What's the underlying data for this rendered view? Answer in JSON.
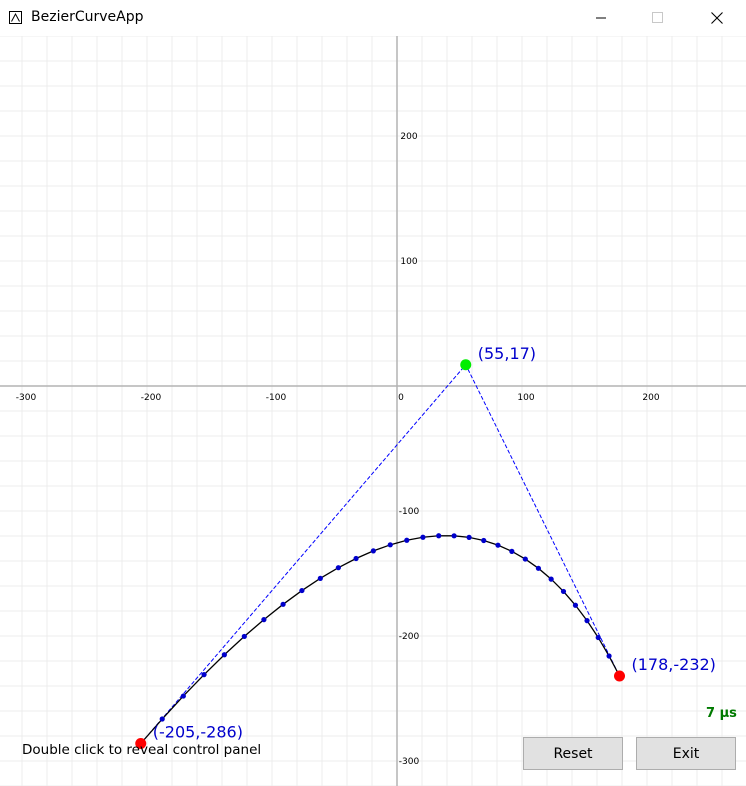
{
  "window": {
    "title": "BezierCurveApp",
    "icon": "bezier-app-icon",
    "controls": [
      "minimize-icon",
      "maximize-icon",
      "close-icon"
    ]
  },
  "canvas": {
    "x_tick_labels": [
      "-300",
      "-200",
      "-100",
      "0",
      "100",
      "200"
    ],
    "y_tick_labels": [
      "200",
      "100",
      "-100",
      "-200",
      "-300"
    ],
    "control_points": [
      {
        "x": -205,
        "y": -286,
        "label": "(-205,-286)",
        "color": "#ff0000"
      },
      {
        "x": 55,
        "y": 17,
        "label": "(55,17)",
        "color": "#00ee00"
      },
      {
        "x": 178,
        "y": -232,
        "label": "(178,-232)",
        "color": "#ff0000"
      }
    ],
    "curve_color": "#000000",
    "sample_point_color": "#0000cc",
    "control_polygon_color": "#0000ff",
    "curve_samples": 30
  },
  "hint_text": "Double click to reveal control panel",
  "timing_text": "7 µs",
  "buttons": {
    "reset": "Reset",
    "exit": "Exit"
  }
}
